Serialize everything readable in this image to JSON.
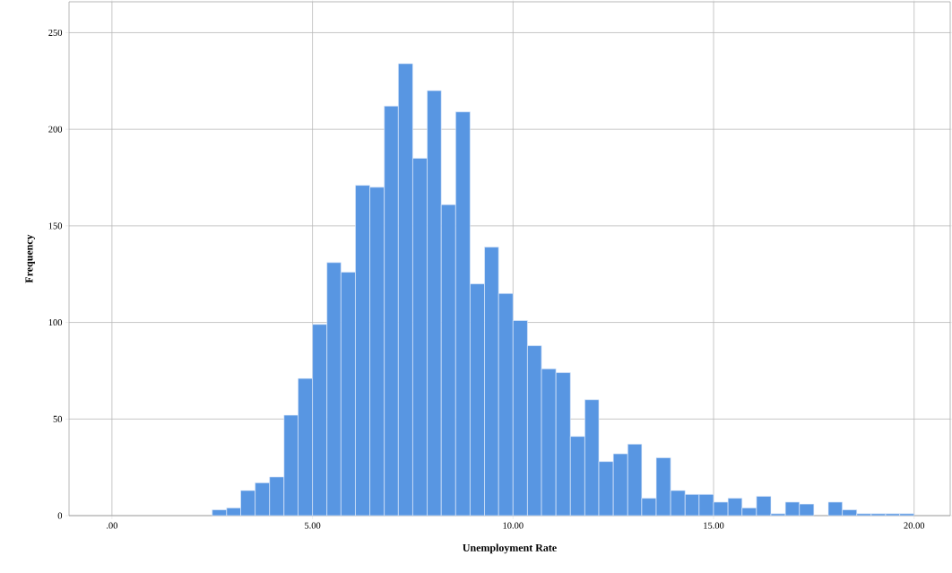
{
  "chart_data": {
    "type": "histogram",
    "xlabel": "Unemployment Rate",
    "ylabel": "Frequency",
    "color": "#5896e2",
    "bins": [
      2.5,
      2.86,
      3.21,
      3.57,
      3.93,
      4.29,
      4.64,
      5,
      5.36,
      5.71,
      6.07,
      6.43,
      6.79,
      7.14,
      7.5,
      7.86,
      8.21,
      8.57,
      8.93,
      9.29,
      9.64,
      10,
      10.36,
      10.71,
      11.07,
      11.43,
      11.79,
      12.14,
      12.5,
      12.86,
      13.21,
      13.57,
      13.93,
      14.29,
      14.64,
      15,
      15.36,
      15.71,
      16.07,
      16.43,
      16.79,
      17.14,
      17.5,
      17.86,
      18.21,
      18.57,
      18.93,
      19.29,
      19.64,
      20
    ],
    "values": [
      3,
      4,
      13,
      17,
      20,
      52,
      71,
      99,
      131,
      126,
      171,
      170,
      212,
      234,
      185,
      220,
      161,
      209,
      120,
      139,
      115,
      101,
      88,
      76,
      74,
      41,
      60,
      28,
      32,
      37,
      9,
      30,
      13,
      11,
      11,
      7,
      9,
      4,
      10,
      1,
      7,
      6,
      0,
      7,
      3,
      1,
      1,
      1,
      1
    ],
    "xlim": [
      -1.07,
      20.9
    ],
    "ylim": [
      0,
      266
    ],
    "xticks": [
      {
        "value": 0,
        "label": ".00"
      },
      {
        "value": 5,
        "label": "5.00"
      },
      {
        "value": 10,
        "label": "10.00"
      },
      {
        "value": 15,
        "label": "15.00"
      },
      {
        "value": 20,
        "label": "20.00"
      }
    ],
    "yticks": [
      0,
      50,
      100,
      150,
      200,
      250
    ],
    "grid": true
  }
}
